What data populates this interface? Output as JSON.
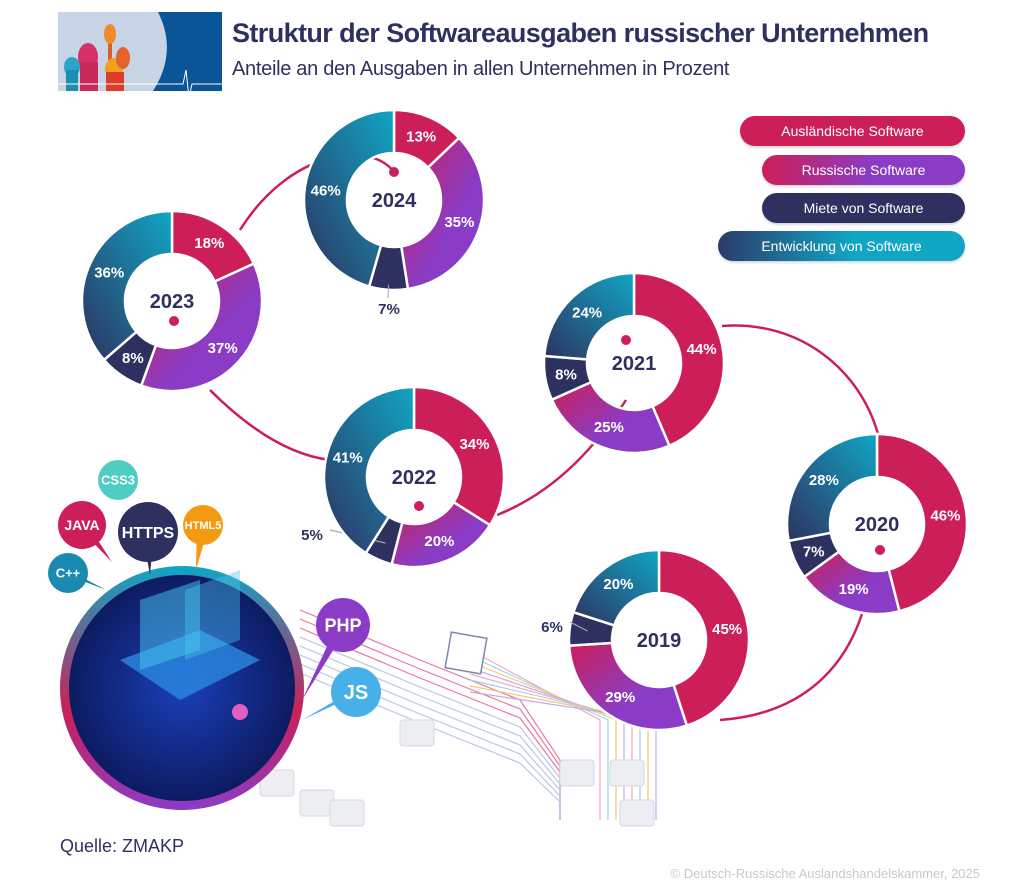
{
  "header": {
    "title": "Struktur der Softwareausgaben russischer Unternehmen",
    "subtitle": "Anteile an den Ausgaben in allen Unternehmen in Prozent"
  },
  "chart_data": {
    "type": "pie",
    "variant": "donut",
    "title": "Struktur der Softwareausgaben russischer Unternehmen",
    "subtitle": "Anteile an den Ausgaben in allen Unternehmen in Prozent",
    "legend_position": "top-right",
    "series_names": [
      "Ausländische Software",
      "Russische Software",
      "Miete von Software",
      "Entwicklung von Software"
    ],
    "colors": [
      "#cc1f57",
      "#8a3cc6",
      "#2e3160",
      "#10a6c4"
    ],
    "charts": [
      {
        "year": "2019",
        "values": [
          45,
          29,
          6,
          20
        ]
      },
      {
        "year": "2020",
        "values": [
          46,
          19,
          7,
          28
        ]
      },
      {
        "year": "2021",
        "values": [
          44,
          25,
          8,
          24
        ]
      },
      {
        "year": "2022",
        "values": [
          34,
          20,
          5,
          41
        ]
      },
      {
        "year": "2023",
        "values": [
          18,
          37,
          8,
          36
        ]
      },
      {
        "year": "2024",
        "values": [
          13,
          35,
          7,
          46
        ]
      }
    ],
    "unit": "%"
  },
  "legend": [
    {
      "label": "Ausländische Software"
    },
    {
      "label": "Russische Software"
    },
    {
      "label": "Miete von Software"
    },
    {
      "label": "Entwicklung von Software"
    }
  ],
  "illustration": {
    "bubbles": [
      "CSS3",
      "JAVA",
      "HTTPS",
      "HTML5",
      "C++",
      "PHP",
      "JS"
    ]
  },
  "footer": {
    "source": "Quelle: ZMAKP",
    "copyright": "© Deutsch-Russische Auslandshandelskammer, 2025"
  }
}
